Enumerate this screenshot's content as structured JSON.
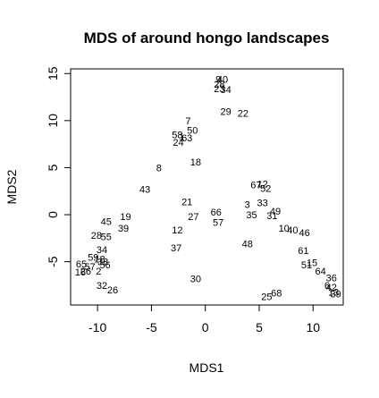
{
  "chart_data": {
    "type": "scatter",
    "title": "MDS of around hongo landscapes",
    "xlabel": "MDS1",
    "ylabel": "MDS2",
    "xlim": [
      -12.5,
      12.8
    ],
    "ylim": [
      -9.6,
      15.5
    ],
    "xticks": [
      -10,
      -5,
      0,
      5,
      10
    ],
    "yticks": [
      -5,
      0,
      5,
      10,
      15
    ],
    "grid": false,
    "legend": "none",
    "points": [
      {
        "label": "9",
        "x": 1.2,
        "y": 14.3
      },
      {
        "label": "40",
        "x": 1.6,
        "y": 14.3
      },
      {
        "label": "28",
        "x": 1.3,
        "y": 13.8
      },
      {
        "label": "23",
        "x": 1.3,
        "y": 13.3
      },
      {
        "label": "34",
        "x": 1.9,
        "y": 13.2
      },
      {
        "label": "29",
        "x": 1.9,
        "y": 10.9
      },
      {
        "label": "22",
        "x": 3.5,
        "y": 10.7
      },
      {
        "label": "7",
        "x": -1.6,
        "y": 9.9
      },
      {
        "label": "50",
        "x": -1.2,
        "y": 8.9
      },
      {
        "label": "58",
        "x": -2.6,
        "y": 8.4
      },
      {
        "label": "1",
        "x": -2.2,
        "y": 8.2
      },
      {
        "label": "63",
        "x": -1.7,
        "y": 8.1
      },
      {
        "label": "24",
        "x": -2.5,
        "y": 7.6
      },
      {
        "label": "18",
        "x": -0.9,
        "y": 5.5
      },
      {
        "label": "8",
        "x": -4.3,
        "y": 4.9
      },
      {
        "label": "43",
        "x": -5.6,
        "y": 2.6
      },
      {
        "label": "67",
        "x": 4.7,
        "y": 3.1
      },
      {
        "label": "12",
        "x": 5.3,
        "y": 3.2
      },
      {
        "label": "52",
        "x": 5.6,
        "y": 2.7
      },
      {
        "label": "21",
        "x": -1.7,
        "y": 1.3
      },
      {
        "label": "3",
        "x": 3.9,
        "y": 1.0
      },
      {
        "label": "33",
        "x": 5.3,
        "y": 1.2
      },
      {
        "label": "66",
        "x": 1.0,
        "y": 0.2
      },
      {
        "label": "35",
        "x": 4.3,
        "y": -0.1
      },
      {
        "label": "49",
        "x": 6.5,
        "y": 0.3
      },
      {
        "label": "31",
        "x": 6.2,
        "y": -0.2
      },
      {
        "label": "27",
        "x": -1.1,
        "y": -0.3
      },
      {
        "label": "57",
        "x": 1.2,
        "y": -0.9
      },
      {
        "label": "45",
        "x": -9.2,
        "y": -0.8
      },
      {
        "label": "19",
        "x": -7.4,
        "y": -0.3
      },
      {
        "label": "10",
        "x": 7.3,
        "y": -1.5
      },
      {
        "label": "40",
        "x": 8.1,
        "y": -1.7
      },
      {
        "label": "46",
        "x": 9.2,
        "y": -2.0
      },
      {
        "label": "39",
        "x": -7.6,
        "y": -1.5
      },
      {
        "label": "12",
        "x": -2.6,
        "y": -1.7
      },
      {
        "label": "28",
        "x": -10.1,
        "y": -2.3
      },
      {
        "label": "55",
        "x": -9.2,
        "y": -2.4
      },
      {
        "label": "48",
        "x": 3.9,
        "y": -3.2
      },
      {
        "label": "37",
        "x": -2.7,
        "y": -3.6
      },
      {
        "label": "34",
        "x": -9.6,
        "y": -3.8
      },
      {
        "label": "61",
        "x": 9.1,
        "y": -3.9
      },
      {
        "label": "59",
        "x": -10.4,
        "y": -4.6
      },
      {
        "label": "18",
        "x": -9.8,
        "y": -4.8
      },
      {
        "label": "38",
        "x": -9.5,
        "y": -5.1
      },
      {
        "label": "56",
        "x": -9.3,
        "y": -5.4
      },
      {
        "label": "65",
        "x": -11.5,
        "y": -5.3
      },
      {
        "label": "57",
        "x": -10.7,
        "y": -5.6
      },
      {
        "label": "15",
        "x": 9.9,
        "y": -5.2
      },
      {
        "label": "51",
        "x": 9.4,
        "y": -5.4
      },
      {
        "label": "64",
        "x": 10.7,
        "y": -6.1
      },
      {
        "label": "16",
        "x": -11.6,
        "y": -6.2
      },
      {
        "label": "26",
        "x": -11.1,
        "y": -6.1
      },
      {
        "label": "2",
        "x": -9.9,
        "y": -6.1
      },
      {
        "label": "30",
        "x": -0.9,
        "y": -6.9
      },
      {
        "label": "36",
        "x": 11.7,
        "y": -6.8
      },
      {
        "label": "32",
        "x": -9.6,
        "y": -7.6
      },
      {
        "label": "26",
        "x": -8.6,
        "y": -8.1
      },
      {
        "label": "6",
        "x": 11.3,
        "y": -7.6
      },
      {
        "label": "42",
        "x": 11.7,
        "y": -7.8
      },
      {
        "label": "13",
        "x": 11.9,
        "y": -8.3
      },
      {
        "label": "39",
        "x": 12.1,
        "y": -8.5
      },
      {
        "label": "68",
        "x": 6.6,
        "y": -8.4
      },
      {
        "label": "25",
        "x": 5.7,
        "y": -8.8
      }
    ]
  }
}
